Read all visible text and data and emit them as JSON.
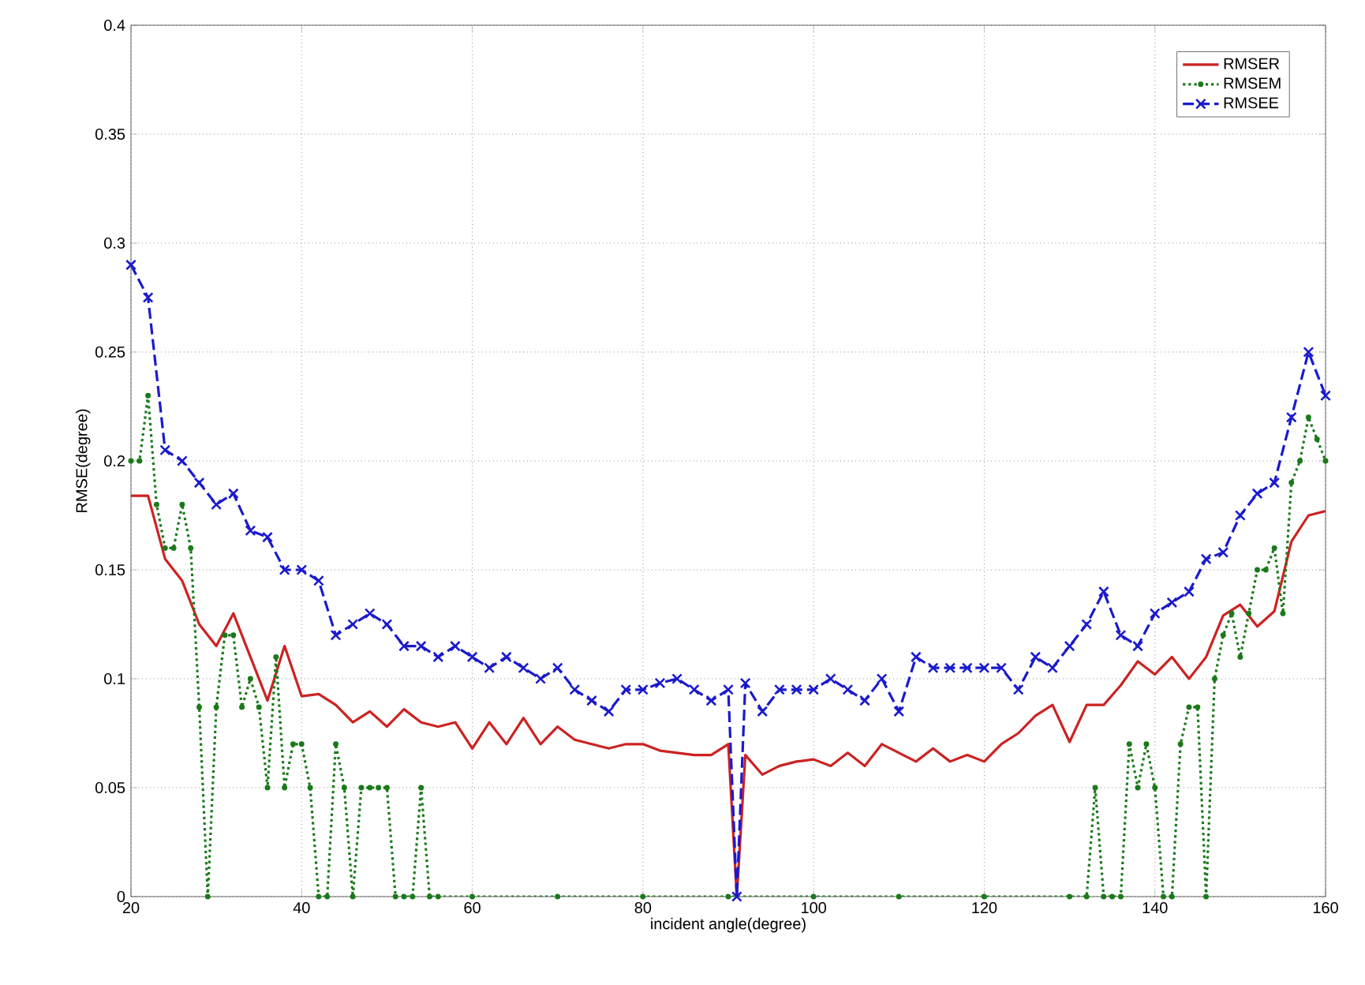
{
  "chart_data": {
    "type": "line",
    "xlabel": "incident angle(degree)",
    "ylabel": "RMSE(degree)",
    "x": [
      20,
      22,
      24,
      26,
      28,
      30,
      32,
      34,
      36,
      38,
      40,
      42,
      44,
      46,
      48,
      50,
      52,
      54,
      56,
      58,
      60,
      62,
      64,
      66,
      68,
      70,
      72,
      74,
      76,
      78,
      80,
      82,
      84,
      86,
      88,
      90,
      91,
      92,
      94,
      96,
      98,
      100,
      102,
      104,
      106,
      108,
      110,
      112,
      114,
      116,
      118,
      120,
      122,
      124,
      126,
      128,
      130,
      132,
      134,
      136,
      138,
      140,
      142,
      144,
      146,
      148,
      150,
      152,
      154,
      156,
      158,
      160
    ],
    "series": [
      {
        "name": "RMSER",
        "color": "#cc2222",
        "marker": "none",
        "line_style": "solid",
        "values": [
          0.184,
          0.184,
          0.155,
          0.145,
          0.125,
          0.115,
          0.13,
          0.11,
          0.09,
          0.115,
          0.092,
          0.093,
          0.088,
          0.08,
          0.085,
          0.078,
          0.086,
          0.08,
          0.078,
          0.08,
          0.068,
          0.08,
          0.07,
          0.082,
          0.07,
          0.078,
          0.072,
          0.07,
          0.068,
          0.07,
          0.07,
          0.067,
          0.066,
          0.065,
          0.065,
          0.07,
          0,
          0.065,
          0.056,
          0.06,
          0.062,
          0.063,
          0.06,
          0.066,
          0.06,
          0.07,
          0.066,
          0.062,
          0.068,
          0.062,
          0.065,
          0.062,
          0.07,
          0.075,
          0.083,
          0.088,
          0.071,
          0.088,
          0.088,
          0.097,
          0.108,
          0.102,
          0.11,
          0.1,
          0.11,
          0.129,
          0.134,
          0.124,
          0.131,
          0.163,
          0.175,
          0.177
        ]
      },
      {
        "name": "RMSEM",
        "color": "#1a7a1a",
        "marker": "circle",
        "line_style": "dotted",
        "x": [
          20,
          21,
          22,
          23,
          24,
          25,
          26,
          27,
          28,
          29,
          30,
          31,
          32,
          33,
          34,
          35,
          36,
          37,
          38,
          39,
          40,
          41,
          42,
          43,
          44,
          45,
          46,
          47,
          48,
          49,
          50,
          51,
          52,
          53,
          54,
          55,
          56,
          60,
          70,
          80,
          90,
          100,
          110,
          120,
          130,
          132,
          133,
          134,
          135,
          136,
          137,
          138,
          139,
          140,
          141,
          142,
          143,
          144,
          145,
          146,
          147,
          148,
          149,
          150,
          151,
          152,
          153,
          154,
          155,
          156,
          157,
          158,
          159,
          160
        ],
        "values": [
          0.2,
          0.2,
          0.23,
          0.18,
          0.16,
          0.16,
          0.18,
          0.16,
          0.087,
          0,
          0.087,
          0.12,
          0.12,
          0.087,
          0.1,
          0.087,
          0.05,
          0.11,
          0.05,
          0.07,
          0.07,
          0.05,
          0,
          0,
          0.07,
          0.05,
          0,
          0.05,
          0.05,
          0.05,
          0.05,
          0,
          0,
          0,
          0.05,
          0,
          0,
          0,
          0,
          0,
          0,
          0,
          0,
          0,
          0,
          0,
          0.05,
          0,
          0,
          0,
          0.07,
          0.05,
          0.07,
          0.05,
          0,
          0,
          0.07,
          0.087,
          0.087,
          0,
          0.1,
          0.12,
          0.13,
          0.11,
          0.13,
          0.15,
          0.15,
          0.16,
          0.13,
          0.19,
          0.2,
          0.22,
          0.21,
          0.2
        ]
      },
      {
        "name": "RMSEE",
        "color": "#1a1acc",
        "marker": "cross",
        "line_style": "dashed",
        "values": [
          0.29,
          0.275,
          0.205,
          0.2,
          0.19,
          0.18,
          0.185,
          0.168,
          0.165,
          0.15,
          0.15,
          0.145,
          0.12,
          0.125,
          0.13,
          0.125,
          0.115,
          0.115,
          0.11,
          0.115,
          0.11,
          0.105,
          0.11,
          0.105,
          0.1,
          0.105,
          0.095,
          0.09,
          0.085,
          0.095,
          0.095,
          0.098,
          0.1,
          0.095,
          0.09,
          0.095,
          0,
          0.098,
          0.085,
          0.095,
          0.095,
          0.095,
          0.1,
          0.095,
          0.09,
          0.1,
          0.085,
          0.11,
          0.105,
          0.105,
          0.105,
          0.105,
          0.105,
          0.095,
          0.11,
          0.105,
          0.115,
          0.125,
          0.14,
          0.12,
          0.115,
          0.13,
          0.135,
          0.14,
          0.155,
          0.158,
          0.175,
          0.185,
          0.19,
          0.22,
          0.25,
          0.23
        ]
      }
    ],
    "xlim": [
      20,
      160
    ],
    "ylim": [
      0,
      0.4
    ],
    "xticks": [
      20,
      40,
      60,
      80,
      100,
      120,
      140,
      160
    ],
    "yticks": [
      0,
      0.05,
      0.1,
      0.15,
      0.2,
      0.25,
      0.3,
      0.35,
      0.4
    ],
    "grid": true,
    "legend": "top right"
  }
}
